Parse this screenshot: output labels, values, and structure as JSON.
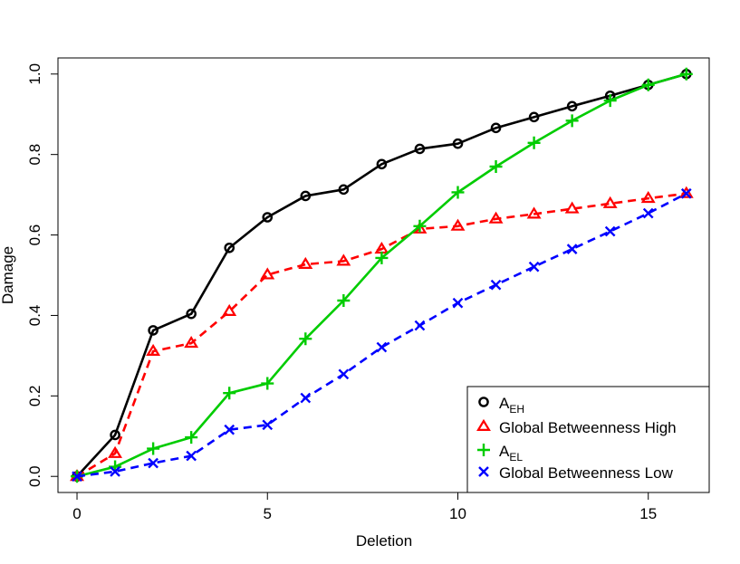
{
  "chart_data": {
    "type": "line",
    "xlabel": "Deletion",
    "ylabel": "Damage",
    "xlim": [
      -0.5,
      16.6
    ],
    "ylim": [
      -0.04,
      1.04
    ],
    "xticks": [
      0,
      5,
      10,
      15
    ],
    "yticks": [
      0.0,
      0.2,
      0.4,
      0.6,
      0.8,
      1.0
    ],
    "xtick_labels": [
      "0",
      "5",
      "10",
      "15"
    ],
    "ytick_labels": [
      "0.0",
      "0.2",
      "0.4",
      "0.6",
      "0.8",
      "1.0"
    ],
    "grid": false,
    "legend_position": "bottom-right",
    "x": [
      0,
      1,
      2,
      3,
      4,
      5,
      6,
      7,
      8,
      9,
      10,
      11,
      12,
      13,
      14,
      15,
      16
    ],
    "series": [
      {
        "key": "AEH",
        "legend_main": "A",
        "legend_sub": "EH",
        "color": "#000000",
        "marker": "circle",
        "dash": "solid",
        "values": [
          0.0,
          0.103,
          0.363,
          0.404,
          0.568,
          0.644,
          0.697,
          0.713,
          0.776,
          0.814,
          0.827,
          0.866,
          0.893,
          0.92,
          0.946,
          0.973,
          1.0
        ]
      },
      {
        "key": "GBH",
        "legend_main": "Global Betweenness High",
        "legend_sub": "",
        "color": "#ff0000",
        "marker": "triangle",
        "dash": "dashed",
        "values": [
          0.0,
          0.057,
          0.311,
          0.331,
          0.41,
          0.501,
          0.527,
          0.535,
          0.565,
          0.615,
          0.622,
          0.64,
          0.652,
          0.665,
          0.678,
          0.691,
          0.703
        ]
      },
      {
        "key": "AEL",
        "legend_main": "A",
        "legend_sub": "EL",
        "color": "#00cc00",
        "marker": "plus",
        "dash": "solid",
        "values": [
          0.0,
          0.024,
          0.069,
          0.097,
          0.207,
          0.231,
          0.342,
          0.437,
          0.543,
          0.622,
          0.706,
          0.77,
          0.829,
          0.884,
          0.934,
          0.973,
          1.0
        ]
      },
      {
        "key": "GBL",
        "legend_main": "Global Betweenness Low",
        "legend_sub": "",
        "color": "#0000ff",
        "marker": "cross",
        "dash": "dashed",
        "values": [
          0.0,
          0.012,
          0.033,
          0.051,
          0.116,
          0.128,
          0.195,
          0.254,
          0.321,
          0.375,
          0.431,
          0.476,
          0.521,
          0.565,
          0.609,
          0.654,
          0.703
        ]
      }
    ]
  }
}
